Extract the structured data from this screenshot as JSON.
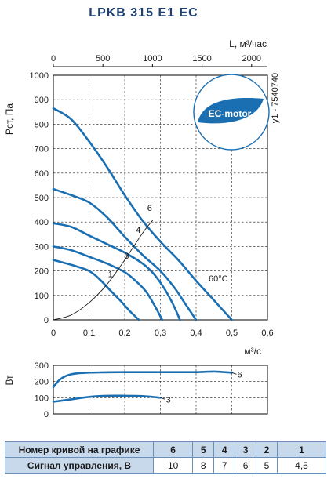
{
  "title": "LPKB 315 E1 EC",
  "badge_text": "EC-motor",
  "side_code": "у1 - 7540740",
  "temperature_label": "60°C",
  "colors": {
    "curve": "#1a6fb3",
    "badge": "#1a6fb3",
    "table_header": "#c9d9ec"
  },
  "chart_data": [
    {
      "type": "line",
      "xlabel": "м³/с",
      "x2label": "L, м³/час",
      "ylabel": "Рст, Па",
      "xlim": [
        0,
        0.6
      ],
      "ylim": [
        0,
        1000
      ],
      "x_ticks": [
        "0",
        "0,1",
        "0,2",
        "0,3",
        "0,4",
        "0,5",
        "0,6"
      ],
      "x_tick_values": [
        0,
        0.1,
        0.2,
        0.3,
        0.4,
        0.5,
        0.6
      ],
      "x2_ticks": [
        "0",
        "500",
        "1000",
        "1500",
        "2000"
      ],
      "x2_tick_values": [
        0,
        500,
        1000,
        1500,
        2000
      ],
      "y_ticks": [
        "0",
        "100",
        "200",
        "300",
        "400",
        "500",
        "600",
        "700",
        "800",
        "900",
        "1000"
      ],
      "y_tick_values": [
        0,
        100,
        200,
        300,
        400,
        500,
        600,
        700,
        800,
        900,
        1000
      ],
      "grid": true,
      "series": [
        {
          "name": "6",
          "x": [
            0,
            0.05,
            0.1,
            0.15,
            0.2,
            0.25,
            0.3,
            0.35,
            0.4,
            0.45,
            0.5
          ],
          "y": [
            865,
            820,
            730,
            625,
            510,
            405,
            320,
            245,
            160,
            80,
            0
          ]
        },
        {
          "name": "5",
          "x": [
            0,
            0.05,
            0.1,
            0.15,
            0.2,
            0.25,
            0.3,
            0.34,
            0.37,
            0.4
          ],
          "y": [
            535,
            510,
            480,
            420,
            340,
            265,
            200,
            130,
            65,
            0
          ]
        },
        {
          "name": "4",
          "x": [
            0,
            0.05,
            0.1,
            0.15,
            0.2,
            0.25,
            0.28,
            0.31,
            0.335,
            0.355
          ],
          "y": [
            395,
            380,
            345,
            310,
            275,
            230,
            190,
            130,
            65,
            0
          ]
        },
        {
          "name": "3",
          "x": [
            0,
            0.05,
            0.1,
            0.15,
            0.2,
            0.23,
            0.26,
            0.285,
            0.305
          ],
          "y": [
            300,
            285,
            258,
            230,
            195,
            160,
            115,
            55,
            0
          ]
        },
        {
          "name": "1",
          "x": [
            0,
            0.05,
            0.1,
            0.13,
            0.16,
            0.19,
            0.215,
            0.24
          ],
          "y": [
            245,
            225,
            200,
            165,
            120,
            75,
            35,
            0
          ]
        }
      ],
      "system_curve": {
        "x": [
          0,
          0.05,
          0.1,
          0.15,
          0.2,
          0.25,
          0.28
        ],
        "y": [
          0,
          20,
          70,
          145,
          245,
          355,
          410
        ]
      },
      "curve_labels": [
        {
          "text": "6",
          "x": 0.27,
          "y": 445
        },
        {
          "text": "4",
          "x": 0.238,
          "y": 355
        },
        {
          "text": "3",
          "x": 0.205,
          "y": 250
        },
        {
          "text": "1",
          "x": 0.16,
          "y": 175
        }
      ]
    },
    {
      "type": "line",
      "ylabel": "Вт",
      "xlim": [
        0,
        0.6
      ],
      "ylim": [
        0,
        300
      ],
      "y_ticks": [
        "0",
        "100",
        "200",
        "300"
      ],
      "y_tick_values": [
        0,
        100,
        200,
        300
      ],
      "grid": true,
      "series": [
        {
          "name": "6",
          "x": [
            0,
            0.02,
            0.05,
            0.1,
            0.2,
            0.3,
            0.4,
            0.45,
            0.5
          ],
          "y": [
            165,
            215,
            245,
            255,
            258,
            258,
            258,
            262,
            255
          ]
        },
        {
          "name": "3",
          "x": [
            0,
            0.05,
            0.1,
            0.15,
            0.2,
            0.25,
            0.3
          ],
          "y": [
            75,
            90,
            105,
            112,
            112,
            110,
            100
          ]
        }
      ]
    }
  ],
  "table": {
    "row_headers": [
      "Номер кривой на графике",
      "Сигнал управления, В"
    ],
    "curve_numbers": [
      "6",
      "5",
      "4",
      "3",
      "2",
      "1"
    ],
    "control_signals": [
      "10",
      "8",
      "7",
      "6",
      "5",
      "4,5"
    ]
  }
}
